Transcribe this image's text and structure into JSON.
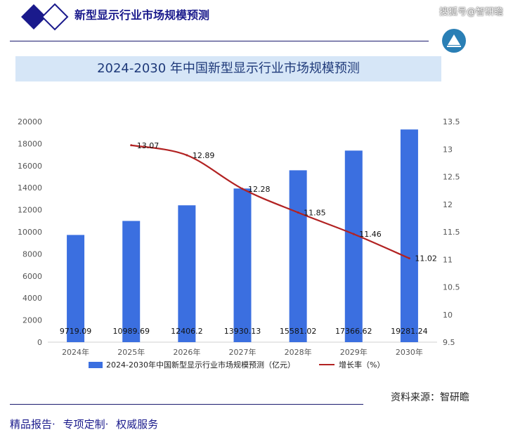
{
  "header": {
    "title": "新型显示行业市场规模预测",
    "watermark": "搜狐号@智研瞻",
    "logo_colors": {
      "primary": "#1a1a8c",
      "badge": "#2a7fb5"
    }
  },
  "chart_data": {
    "type": "bar",
    "title": "2024-2030 年中国新型显示行业市场规模预测",
    "categories": [
      "2024年",
      "2025年",
      "2026年",
      "2027年",
      "2028年",
      "2029年",
      "2030年"
    ],
    "series": [
      {
        "name": "2024-2030年中国新型显示行业市场规模预测（亿元）",
        "type": "bar",
        "axis": "left",
        "color": "#3b6fe0",
        "values": [
          9719.09,
          10989.69,
          12406.2,
          13930.13,
          15581.02,
          17366.62,
          19281.24
        ],
        "labels": [
          "9719.09",
          "10989.69",
          "12406.2",
          "13930.13",
          "15581.02",
          "17366.62",
          "19281.24"
        ]
      },
      {
        "name": "增长率（%）",
        "type": "line",
        "axis": "right",
        "color": "#b22222",
        "values": [
          null,
          13.07,
          12.89,
          12.28,
          11.85,
          11.46,
          11.02
        ],
        "labels": [
          "",
          "13.07",
          "12.89",
          "12.28",
          "11.85",
          "11.46",
          "11.02"
        ]
      }
    ],
    "y_left": {
      "min": 0,
      "max": 20000,
      "ticks": [
        "0",
        "2000",
        "4000",
        "6000",
        "8000",
        "10000",
        "12000",
        "14000",
        "16000",
        "18000",
        "20000"
      ]
    },
    "y_right": {
      "min": 9.5,
      "max": 13.5,
      "ticks": [
        "9.5",
        "10",
        "10.5",
        "11",
        "11.5",
        "12",
        "12.5",
        "13",
        "13.5"
      ]
    },
    "grid": false,
    "legend_position": "bottom"
  },
  "source": "资料来源：智研瞻",
  "footer": {
    "items": [
      "精品报告·",
      "专项定制·",
      "权威服务"
    ]
  }
}
